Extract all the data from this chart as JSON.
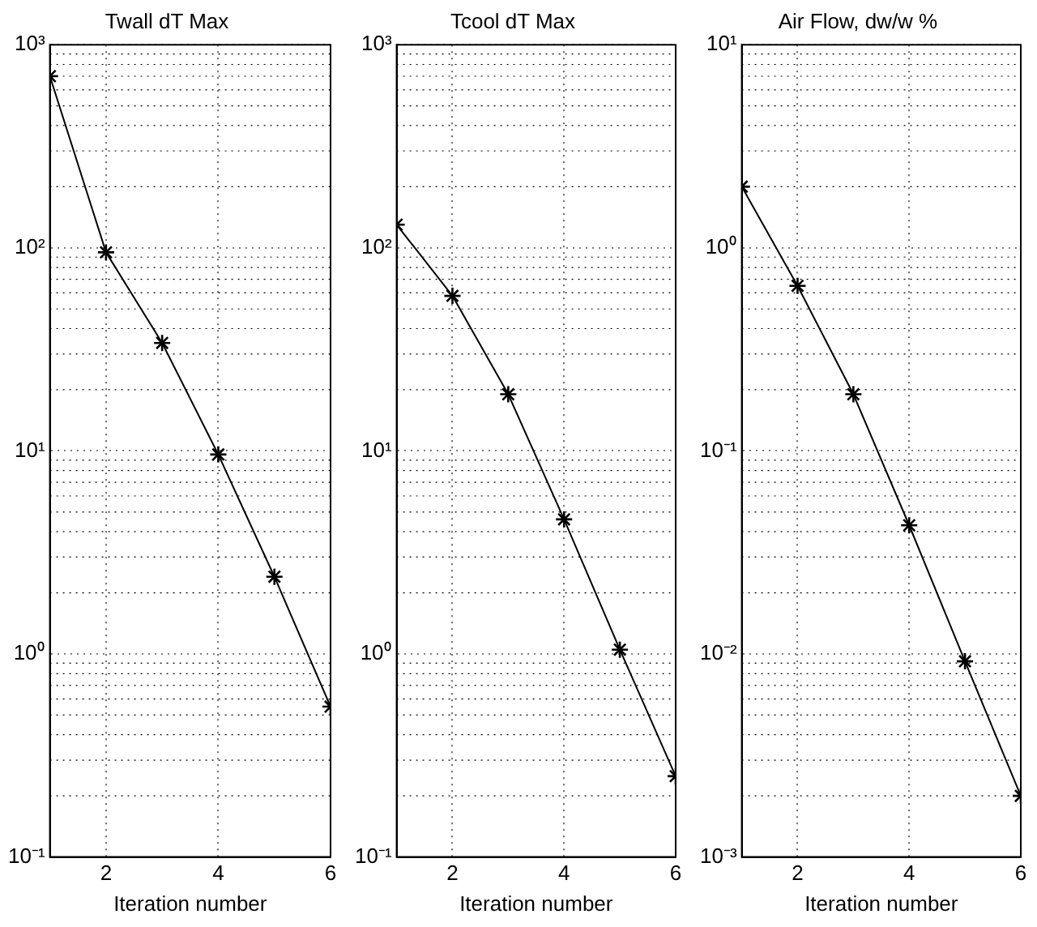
{
  "chart_data": [
    {
      "type": "line",
      "title": "Twall dT Max",
      "xlabel": "Iteration number",
      "x": [
        1,
        2,
        3,
        4,
        5,
        6
      ],
      "log": "y",
      "grid": true,
      "marker": "cross",
      "line_style": "solid",
      "xlim": [
        1,
        6
      ],
      "xticks": [
        2,
        4,
        6
      ],
      "ylim": [
        0.1,
        1000
      ],
      "yticks": [
        {
          "value": 0.1,
          "label": "10⁻¹"
        },
        {
          "value": 1,
          "label": "10⁰"
        },
        {
          "value": 10,
          "label": "10¹"
        },
        {
          "value": 100,
          "label": "10²"
        },
        {
          "value": 1000,
          "label": "10³"
        }
      ],
      "series": [
        {
          "color": "#000000",
          "values": [
            700,
            95,
            34,
            9.6,
            2.4,
            0.55
          ]
        }
      ]
    },
    {
      "type": "line",
      "title": "Tcool dT Max",
      "xlabel": "Iteration number",
      "x": [
        1,
        2,
        3,
        4,
        5,
        6
      ],
      "log": "y",
      "grid": true,
      "marker": "cross",
      "line_style": "solid",
      "xlim": [
        1,
        6
      ],
      "xticks": [
        2,
        4,
        6
      ],
      "ylim": [
        0.1,
        1000
      ],
      "yticks": [
        {
          "value": 0.1,
          "label": "10⁻¹"
        },
        {
          "value": 1,
          "label": "10⁰"
        },
        {
          "value": 10,
          "label": "10¹"
        },
        {
          "value": 100,
          "label": "10²"
        },
        {
          "value": 1000,
          "label": "10³"
        }
      ],
      "series": [
        {
          "color": "#000000",
          "values": [
            130,
            58,
            19,
            4.6,
            1.05,
            0.25
          ]
        }
      ]
    },
    {
      "type": "line",
      "title": "Air Flow, dw/w %",
      "xlabel": "Iteration number",
      "x": [
        1,
        2,
        3,
        4,
        5,
        6
      ],
      "log": "y",
      "grid": true,
      "marker": "cross",
      "line_style": "solid",
      "xlim": [
        1,
        6
      ],
      "xticks": [
        2,
        4,
        6
      ],
      "ylim": [
        0.001,
        10
      ],
      "yticks": [
        {
          "value": 0.001,
          "label": "10⁻³"
        },
        {
          "value": 0.01,
          "label": "10⁻²"
        },
        {
          "value": 0.1,
          "label": "10⁻¹"
        },
        {
          "value": 1,
          "label": "10⁰"
        },
        {
          "value": 10,
          "label": "10¹"
        }
      ],
      "series": [
        {
          "color": "#000000",
          "values": [
            2,
            0.65,
            0.19,
            0.043,
            0.0092,
            0.002
          ]
        }
      ]
    }
  ]
}
